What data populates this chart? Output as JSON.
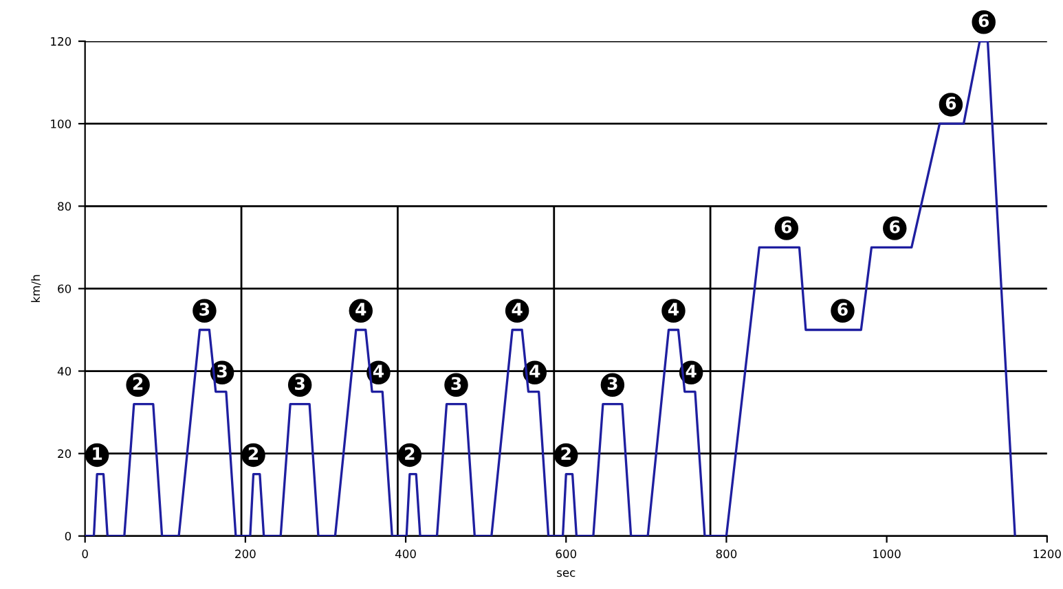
{
  "chart_data": {
    "type": "line",
    "xlabel": "sec",
    "ylabel": "km/h",
    "x": [
      0,
      11,
      15,
      23,
      28,
      49,
      61,
      85,
      96,
      117,
      143,
      155,
      163,
      176,
      188,
      195,
      206,
      210,
      218,
      223,
      244,
      256,
      280,
      291,
      312,
      338,
      350,
      358,
      371,
      383,
      390,
      401,
      405,
      413,
      418,
      439,
      451,
      475,
      486,
      507,
      533,
      545,
      553,
      566,
      578,
      585,
      596,
      600,
      608,
      613,
      634,
      646,
      670,
      681,
      702,
      728,
      740,
      748,
      761,
      773,
      780,
      800,
      841,
      891,
      899,
      968,
      981,
      1031,
      1066,
      1096,
      1116,
      1126,
      1160
    ],
    "series": [
      {
        "color": "#1f1fa0",
        "values": [
          0,
          0,
          15,
          15,
          0,
          0,
          32,
          32,
          0,
          0,
          50,
          50,
          35,
          35,
          0,
          0,
          0,
          15,
          15,
          0,
          0,
          32,
          32,
          0,
          0,
          50,
          50,
          35,
          35,
          0,
          0,
          0,
          15,
          15,
          0,
          0,
          32,
          32,
          0,
          0,
          50,
          50,
          35,
          35,
          0,
          0,
          0,
          15,
          15,
          0,
          0,
          32,
          32,
          0,
          0,
          50,
          50,
          35,
          35,
          0,
          0,
          0,
          70,
          70,
          50,
          50,
          70,
          70,
          100,
          100,
          120,
          120,
          0
        ]
      }
    ],
    "xlim": [
      0,
      1200
    ],
    "ylim": [
      0,
      120
    ],
    "xticks": [
      0,
      200,
      400,
      600,
      800,
      1000,
      1200
    ],
    "yticks": [
      0,
      20,
      40,
      60,
      80,
      100,
      120
    ],
    "grid": "y",
    "marker": "none",
    "line_style": "solid",
    "ref_lines": [
      {
        "axis": "x",
        "value": 195,
        "color": "#000000"
      },
      {
        "axis": "x",
        "value": 390,
        "color": "#000000"
      },
      {
        "axis": "x",
        "value": 585,
        "color": "#000000"
      },
      {
        "axis": "x",
        "value": 780,
        "color": "#000000"
      }
    ],
    "annotations": [
      {
        "text": "1",
        "x": 15,
        "y": 15
      },
      {
        "text": "2",
        "x": 66,
        "y": 32
      },
      {
        "text": "3",
        "x": 149,
        "y": 50
      },
      {
        "text": "3",
        "x": 171,
        "y": 35
      },
      {
        "text": "2",
        "x": 210,
        "y": 15
      },
      {
        "text": "3",
        "x": 268,
        "y": 32
      },
      {
        "text": "4",
        "x": 344,
        "y": 50
      },
      {
        "text": "4",
        "x": 366,
        "y": 35
      },
      {
        "text": "2",
        "x": 405,
        "y": 15
      },
      {
        "text": "3",
        "x": 463,
        "y": 32
      },
      {
        "text": "4",
        "x": 539,
        "y": 50
      },
      {
        "text": "4",
        "x": 561,
        "y": 35
      },
      {
        "text": "2",
        "x": 600,
        "y": 15
      },
      {
        "text": "3",
        "x": 658,
        "y": 32
      },
      {
        "text": "4",
        "x": 734,
        "y": 50
      },
      {
        "text": "4",
        "x": 756,
        "y": 35
      },
      {
        "text": "6",
        "x": 875,
        "y": 70
      },
      {
        "text": "6",
        "x": 945,
        "y": 50
      },
      {
        "text": "6",
        "x": 1010,
        "y": 70
      },
      {
        "text": "6",
        "x": 1080,
        "y": 100
      },
      {
        "text": "6",
        "x": 1121,
        "y": 120
      }
    ]
  }
}
